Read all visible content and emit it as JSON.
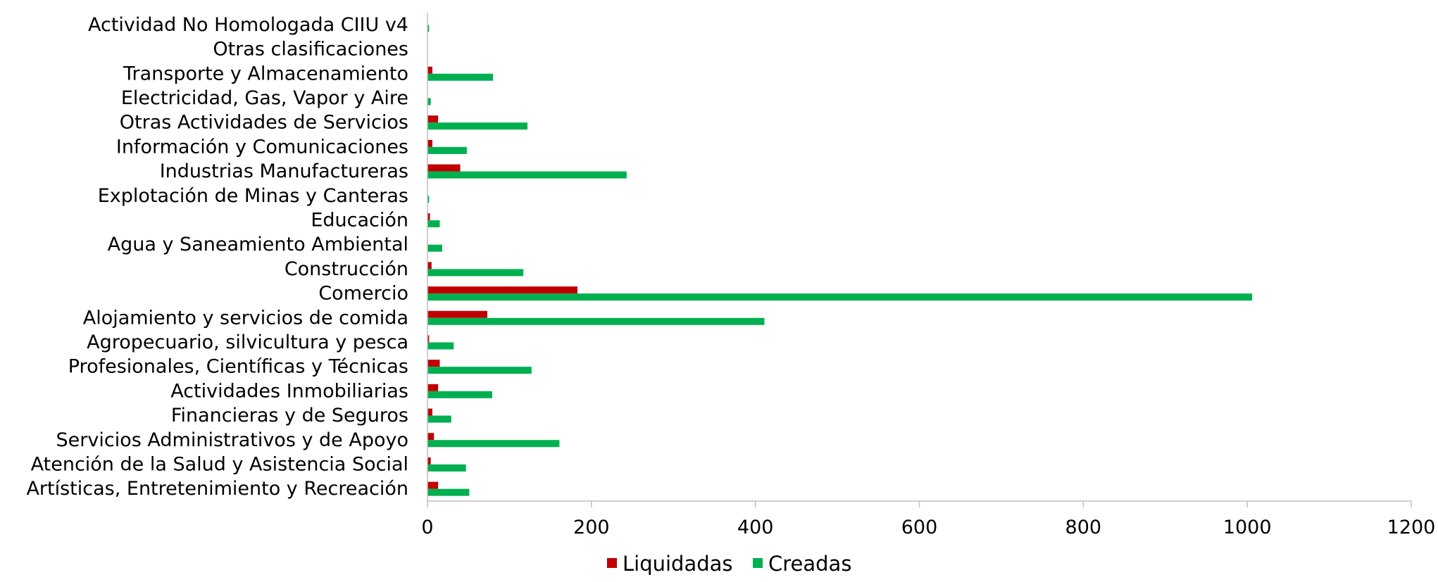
{
  "chart_data": {
    "type": "bar",
    "orientation": "horizontal",
    "title": "",
    "xlabel": "",
    "ylabel": "",
    "xlim": [
      0,
      1200
    ],
    "x_ticks": [
      "0",
      "200",
      "400",
      "600",
      "800",
      "1000",
      "1200"
    ],
    "grid": false,
    "legend_position": "bottom",
    "categories": [
      "Actividad No Homologada CIIU v4",
      "Otras clasificaciones",
      "Transporte y Almacenamiento",
      "Electricidad, Gas, Vapor y Aire",
      "Otras Actividades de Servicios",
      "Información y Comunicaciones",
      "Industrias Manufactureras",
      "Explotación de Minas y Canteras",
      "Educación",
      "Agua y Saneamiento Ambiental",
      "Construcción",
      "Comercio",
      "Alojamiento y servicios de comida",
      "Agropecuario, silvicultura y pesca",
      "Profesionales, Científicas y Técnicas",
      "Actividades Inmobiliarias",
      "Financieras y de Seguros",
      "Servicios Administrativos y de Apoyo",
      "Atención de la Salud y Asistencia Social",
      "Artísticas, Entretenimiento y Recreación"
    ],
    "series": [
      {
        "name": "Liquidadas",
        "color": "#C00000",
        "values": [
          0,
          0,
          6,
          0,
          13,
          6,
          40,
          0,
          3,
          0,
          5,
          183,
          73,
          2,
          15,
          13,
          6,
          8,
          4,
          13
        ]
      },
      {
        "name": "Creadas",
        "color": "#00B050",
        "values": [
          2,
          0,
          80,
          4,
          122,
          48,
          243,
          2,
          15,
          18,
          117,
          1006,
          411,
          32,
          127,
          79,
          29,
          161,
          47,
          51
        ]
      }
    ]
  }
}
